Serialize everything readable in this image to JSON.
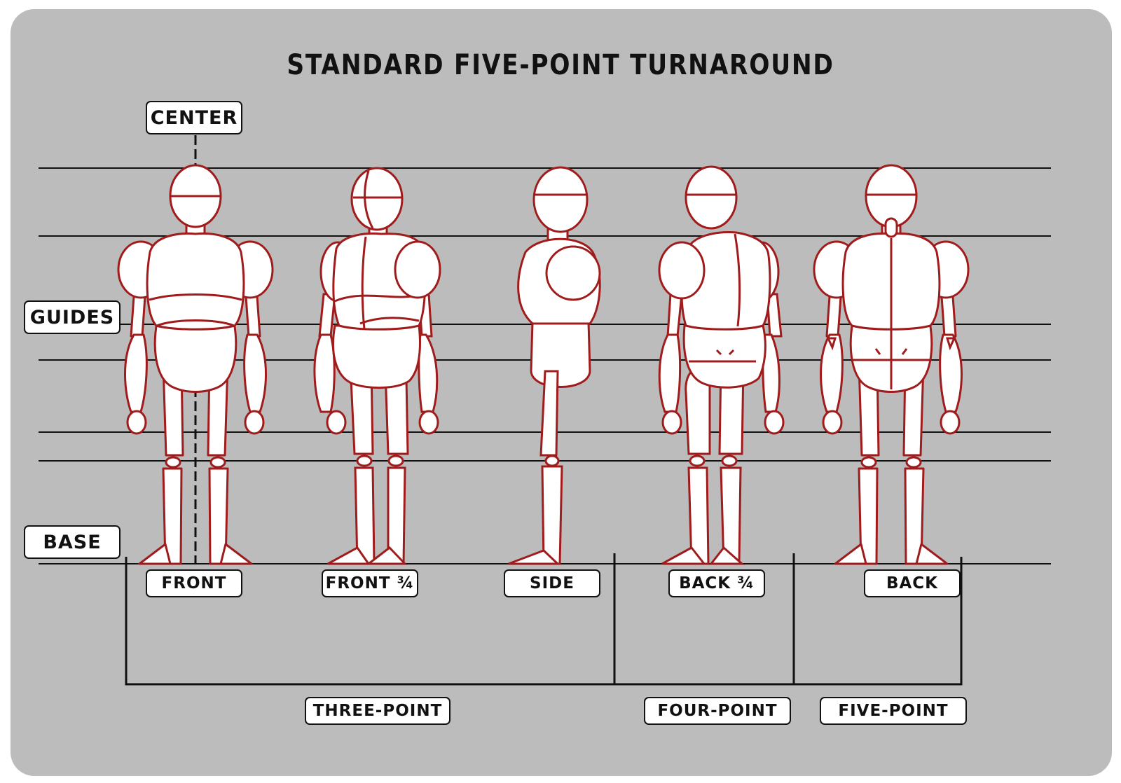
{
  "title": "STANDARD FIVE-POINT TURNAROUND",
  "markers": {
    "center": "CENTER",
    "guides": "GUIDES",
    "base": "BASE"
  },
  "views": [
    {
      "id": "front",
      "label": "FRONT"
    },
    {
      "id": "front-three-quarter",
      "label": "FRONT ¾"
    },
    {
      "id": "side",
      "label": "SIDE"
    },
    {
      "id": "back-three-quarter",
      "label": "BACK ¾"
    },
    {
      "id": "back",
      "label": "BACK"
    }
  ],
  "groups": [
    {
      "id": "three-point",
      "label": "THREE-POINT",
      "spans_views": 3
    },
    {
      "id": "four-point",
      "label": "FOUR-POINT",
      "spans_views": 4
    },
    {
      "id": "five-point",
      "label": "FIVE-POINT",
      "spans_views": 5
    }
  ],
  "colors": {
    "background": "#bcbcbc",
    "figure_outline": "#a01c1c",
    "guide_line": "#111111",
    "label_fill": "#ffffff"
  }
}
